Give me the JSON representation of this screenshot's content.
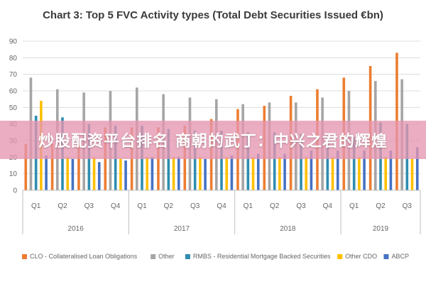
{
  "chart_data": {
    "type": "bar",
    "title": "Chart 3: Top 5 FVC Activity types (Total Debt Securities Issued €bn)",
    "ylim": [
      0,
      90
    ],
    "yticks": [
      0,
      10,
      20,
      30,
      40,
      50,
      60,
      70,
      80,
      90
    ],
    "grid": true,
    "legend_position": "bottom",
    "categories": [
      "Q1",
      "Q2",
      "Q3",
      "Q4",
      "Q1",
      "Q2",
      "Q3",
      "Q4",
      "Q1",
      "Q2",
      "Q3",
      "Q4",
      "Q1",
      "Q2",
      "Q3"
    ],
    "year_groups": [
      {
        "label": "2016",
        "count": 4
      },
      {
        "label": "2017",
        "count": 4
      },
      {
        "label": "2018",
        "count": 4
      },
      {
        "label": "2019",
        "count": 3
      }
    ],
    "series": [
      {
        "name": "CLO - Collateralised Loan Obligations",
        "color": "#ED7D31",
        "values": [
          28,
          28,
          28,
          38,
          38,
          38,
          39,
          43,
          49,
          51,
          57,
          61,
          68,
          75,
          83
        ]
      },
      {
        "name": "Other",
        "color": "#A5A5A5",
        "values": [
          68,
          61,
          59,
          60,
          62,
          58,
          56,
          55,
          52,
          53,
          53,
          56,
          60,
          66,
          67
        ]
      },
      {
        "name": "RMBS - Residential Mortgage Backed Securities",
        "color": "#2E8DB0",
        "values": [
          45,
          44,
          40,
          39,
          39,
          37,
          36,
          36,
          35,
          35,
          34,
          33,
          32,
          41,
          40
        ]
      },
      {
        "name": "Other CDO",
        "color": "#FFC000",
        "values": [
          54,
          20,
          20,
          19,
          20,
          20,
          20,
          20,
          20,
          20,
          20,
          20,
          20,
          20,
          19
        ]
      },
      {
        "name": "ABCP",
        "color": "#4472C4",
        "values": [
          21,
          19,
          17,
          18,
          20,
          20,
          19,
          21,
          22,
          22,
          24,
          24,
          24,
          24,
          26
        ]
      }
    ]
  },
  "overlay": {
    "banner_text": "炒股配资平台排名 商朝的武丁：中兴之君的辉煌"
  }
}
